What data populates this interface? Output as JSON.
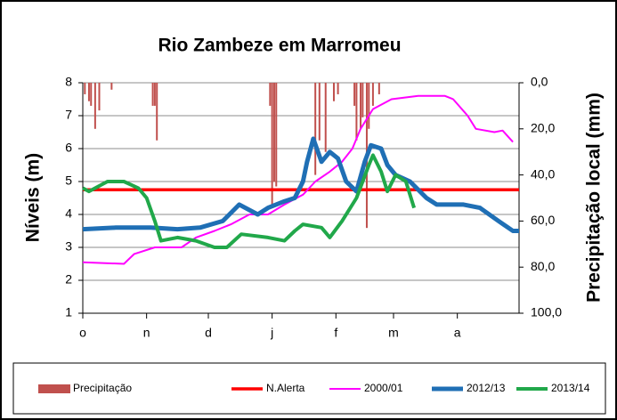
{
  "chart_data": {
    "type": "line",
    "title": "Rio Zambeze em Marromeu",
    "ylabel": "Níveis (m)",
    "y2label": "Precipitação local  (mm)",
    "xlim": [
      0,
      212
    ],
    "xticks": [
      {
        "value": 0,
        "label": "o"
      },
      {
        "value": 31,
        "label": "n"
      },
      {
        "value": 61,
        "label": "d"
      },
      {
        "value": 92,
        "label": "j"
      },
      {
        "value": 123,
        "label": "f"
      },
      {
        "value": 151,
        "label": "m"
      },
      {
        "value": 182,
        "label": "a"
      }
    ],
    "ylim": [
      1,
      8
    ],
    "yticks": [
      1,
      2,
      3,
      4,
      5,
      6,
      7,
      8
    ],
    "y2lim": [
      0,
      100
    ],
    "y2_reversed": true,
    "y2ticks": [
      {
        "value": 0,
        "label": "0,0"
      },
      {
        "value": 20,
        "label": "20,0"
      },
      {
        "value": 40,
        "label": "40,0"
      },
      {
        "value": 60,
        "label": "60,0"
      },
      {
        "value": 80,
        "label": "80,0"
      },
      {
        "value": 100,
        "label": "100,0"
      }
    ],
    "grid": true,
    "legend": "bottom",
    "series": [
      {
        "name": "Precipitação",
        "type": "bar",
        "axis": "y2",
        "color": "#c0504d",
        "x": [
          1,
          3,
          4,
          6,
          8,
          14,
          34,
          35,
          36,
          91,
          92,
          93,
          94,
          113,
          115,
          118,
          122,
          124,
          132,
          133,
          135,
          136,
          138,
          139,
          141,
          144
        ],
        "values": [
          5,
          8,
          10,
          20,
          12,
          3,
          10,
          10,
          25,
          10,
          54,
          43,
          45,
          40,
          25,
          30,
          8,
          5,
          10,
          25,
          20,
          15,
          63,
          20,
          10,
          5
        ]
      },
      {
        "name": "N.Alerta",
        "type": "line",
        "color": "#ff0000",
        "width": 3.5,
        "x": [
          0,
          212
        ],
        "values": [
          4.75,
          4.75
        ]
      },
      {
        "name": "2000/01",
        "type": "line",
        "color": "#ff00ff",
        "width": 2,
        "x": [
          0,
          20,
          25,
          35,
          48,
          55,
          64,
          72,
          81,
          90,
          98,
          107,
          113,
          120,
          126,
          131,
          135,
          141,
          150,
          163,
          176,
          180,
          187,
          191,
          200,
          204,
          209
        ],
        "values": [
          2.55,
          2.5,
          2.8,
          3.0,
          3.0,
          3.3,
          3.5,
          3.7,
          4.0,
          4.0,
          4.3,
          4.6,
          5.0,
          5.3,
          5.6,
          6.0,
          6.6,
          7.2,
          7.5,
          7.6,
          7.6,
          7.5,
          7.0,
          6.6,
          6.5,
          6.55,
          6.2
        ]
      },
      {
        "name": "2012/13",
        "type": "line",
        "color": "#1f6fb5",
        "width": 5,
        "x": [
          0,
          16,
          33,
          46,
          57,
          68,
          76,
          85,
          90,
          98,
          103,
          107,
          109,
          112,
          116,
          120,
          124,
          128,
          133,
          137,
          140,
          145,
          148,
          152,
          159,
          167,
          172,
          178,
          185,
          193,
          202,
          209,
          212
        ],
        "values": [
          3.55,
          3.6,
          3.6,
          3.55,
          3.6,
          3.8,
          4.3,
          4.0,
          4.2,
          4.4,
          4.5,
          5.0,
          5.6,
          6.3,
          5.6,
          5.9,
          5.7,
          5.0,
          4.7,
          5.6,
          6.1,
          6.0,
          5.5,
          5.2,
          5.0,
          4.5,
          4.3,
          4.3,
          4.3,
          4.2,
          3.8,
          3.5,
          3.5
        ]
      },
      {
        "name": "2013/14",
        "type": "line",
        "color": "#21a84a",
        "width": 4,
        "x": [
          0,
          3,
          12,
          20,
          27,
          31,
          35,
          38,
          46,
          55,
          64,
          70,
          77,
          90,
          98,
          103,
          107,
          116,
          120,
          126,
          133,
          139,
          141,
          145,
          148,
          152,
          157,
          161
        ],
        "values": [
          4.8,
          4.7,
          5.0,
          5.0,
          4.8,
          4.5,
          3.8,
          3.2,
          3.3,
          3.2,
          3.0,
          3.0,
          3.4,
          3.3,
          3.2,
          3.5,
          3.7,
          3.6,
          3.3,
          3.8,
          4.5,
          5.5,
          5.8,
          5.3,
          4.7,
          5.2,
          5.0,
          4.2
        ]
      }
    ]
  }
}
